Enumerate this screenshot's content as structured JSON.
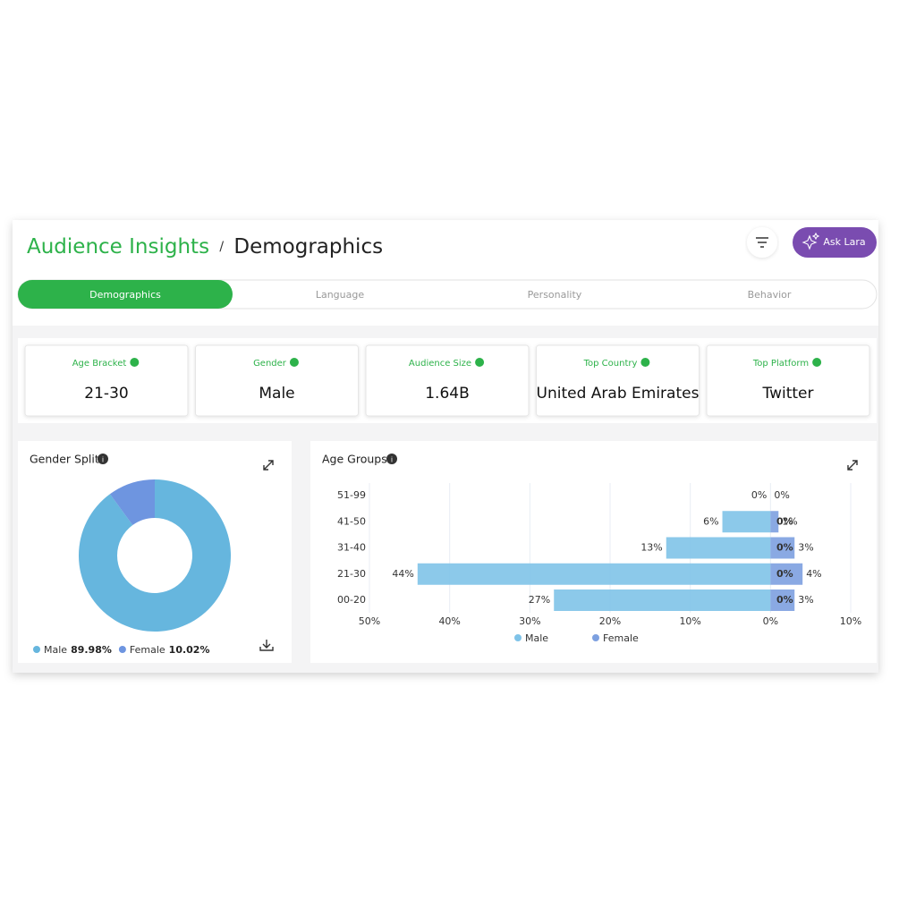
{
  "header": {
    "title": "Audience Insights",
    "separator": "/",
    "subtitle": "Demographics",
    "button": "Ask Lara"
  },
  "tabs": [
    "Demographics",
    "Language",
    "Personality",
    "Behavior"
  ],
  "cards": [
    {
      "label": "Age Bracket",
      "value": "21-30"
    },
    {
      "label": "Gender",
      "value": "Male"
    },
    {
      "label": "Audience Size",
      "value": "1.64B"
    },
    {
      "label": "Top Country",
      "value": "United Arab Emirates"
    },
    {
      "label": "Top Platform",
      "value": "Twitter"
    }
  ],
  "chart_data": [
    {
      "type": "pie",
      "title": "Gender Split",
      "categories": [
        "Male",
        "Female"
      ],
      "values": [
        89.98,
        10.02
      ],
      "value_labels": [
        "89.98%",
        "10.02%"
      ],
      "colors": [
        "#66b6de",
        "#6e95e0"
      ]
    },
    {
      "type": "bar",
      "title": "Age Groups",
      "orientation": "horizontal",
      "categories": [
        "51-99",
        "41-50",
        "31-40",
        "21-30",
        "00-20"
      ],
      "series": [
        {
          "name": "Male",
          "color": "#7fc3e8",
          "values": [
            0,
            -6,
            -13,
            -44,
            -27
          ],
          "value_labels": [
            "0%",
            "6%",
            "13%",
            "44%",
            "27%"
          ]
        },
        {
          "name": "Female",
          "color": "#7da0e0",
          "values": [
            0,
            1,
            3,
            4,
            3
          ],
          "value_labels": [
            "0%",
            "1%",
            "3%",
            "4%",
            "3%"
          ],
          "inner_value_labels": [
            null,
            "0%",
            "0%",
            "0%",
            "0%"
          ]
        }
      ],
      "xlim": [
        -50,
        10
      ],
      "xticks": [
        {
          "value": -50,
          "label": "50%"
        },
        {
          "value": -40,
          "label": "40%"
        },
        {
          "value": -30,
          "label": "30%"
        },
        {
          "value": -20,
          "label": "20%"
        },
        {
          "value": -10,
          "label": "10%"
        },
        {
          "value": 0,
          "label": "0%"
        },
        {
          "value": 10,
          "label": "10%"
        }
      ],
      "grid": true
    }
  ]
}
